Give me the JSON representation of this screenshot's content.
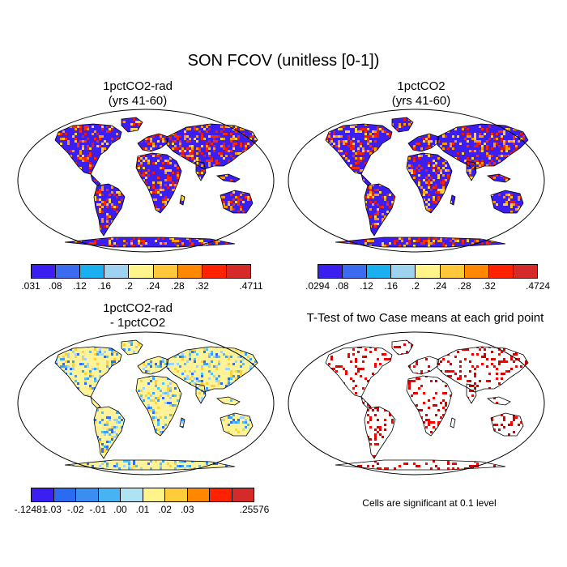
{
  "figure": {
    "title": "SON FCOV (unitless [0-1])",
    "note": "Cells are significant at 0.1 level"
  },
  "panels": [
    {
      "id": "p1",
      "title_line1": "1pctCO2-rad",
      "title_line2": "(yrs 41-60)",
      "fill": "#3a1ff0",
      "noise": [
        "#ff2a00",
        "#ff9a00",
        "#ffd23d",
        "#3a1ff0",
        "#e11a1a"
      ],
      "density": 0.42
    },
    {
      "id": "p2",
      "title_line1": "1pctCO2",
      "title_line2": "(yrs 41-60)",
      "fill": "#3a1ff0",
      "noise": [
        "#ff2a00",
        "#ff9a00",
        "#ffd23d",
        "#3a1ff0",
        "#e11a1a"
      ],
      "density": 0.42
    },
    {
      "id": "p3",
      "title_line1": "1pctCO2-rad",
      "title_line2": "- 1pctCO2",
      "fill": "#fff39a",
      "noise": [
        "#9fd0ff",
        "#3aa0ff",
        "#4fc3f7",
        "#ffd23d",
        "#2b6bff"
      ],
      "density": 0.28
    },
    {
      "id": "p4",
      "title_line1": "T-Test of two Case means at each grid point",
      "title_line2": "",
      "fill": "#ffffff",
      "noise": [
        "#ff0000",
        "#d40000"
      ],
      "density": 0.18
    }
  ],
  "colorbars": [
    {
      "id": "cb1",
      "colors": [
        "#3a1ff0",
        "#3b6bef",
        "#1ab0f0",
        "#9fd2ee",
        "#fff48a",
        "#ffc83a",
        "#ff8800",
        "#ff2200",
        "#d42a2a"
      ],
      "labels": [
        ".031",
        ".08",
        ".12",
        ".16",
        ".2",
        ".24",
        ".28",
        ".32",
        ".4711"
      ]
    },
    {
      "id": "cb2",
      "colors": [
        "#3a1ff0",
        "#3b6bef",
        "#1ab0f0",
        "#9fd2ee",
        "#fff48a",
        "#ffc83a",
        "#ff8800",
        "#ff2200",
        "#d42a2a"
      ],
      "labels": [
        ".0294",
        ".08",
        ".12",
        ".16",
        ".2",
        ".24",
        ".28",
        ".32",
        ".4724"
      ]
    },
    {
      "id": "cb3",
      "colors": [
        "#3a1ff0",
        "#2b6bef",
        "#3a8ef0",
        "#46b4f2",
        "#aee3f4",
        "#fff48a",
        "#ffcc3a",
        "#ff8800",
        "#ff2200",
        "#d42a2a"
      ],
      "labels": [
        "-.12481",
        "-.03",
        "-.02",
        "-.01",
        ".00",
        ".01",
        ".02",
        ".03",
        ".25576"
      ]
    }
  ]
}
